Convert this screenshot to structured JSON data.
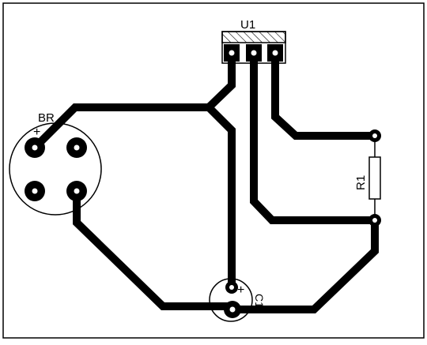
{
  "labels": {
    "u1": "U1",
    "br": "BR",
    "br_plus": "+",
    "r1": "R1",
    "c1": "C1",
    "c1_plus": "+"
  },
  "colors": {
    "background": "#ffffff",
    "copper": "#000000",
    "silkscreen": "#000000",
    "pad_hole": "#ffffff"
  }
}
